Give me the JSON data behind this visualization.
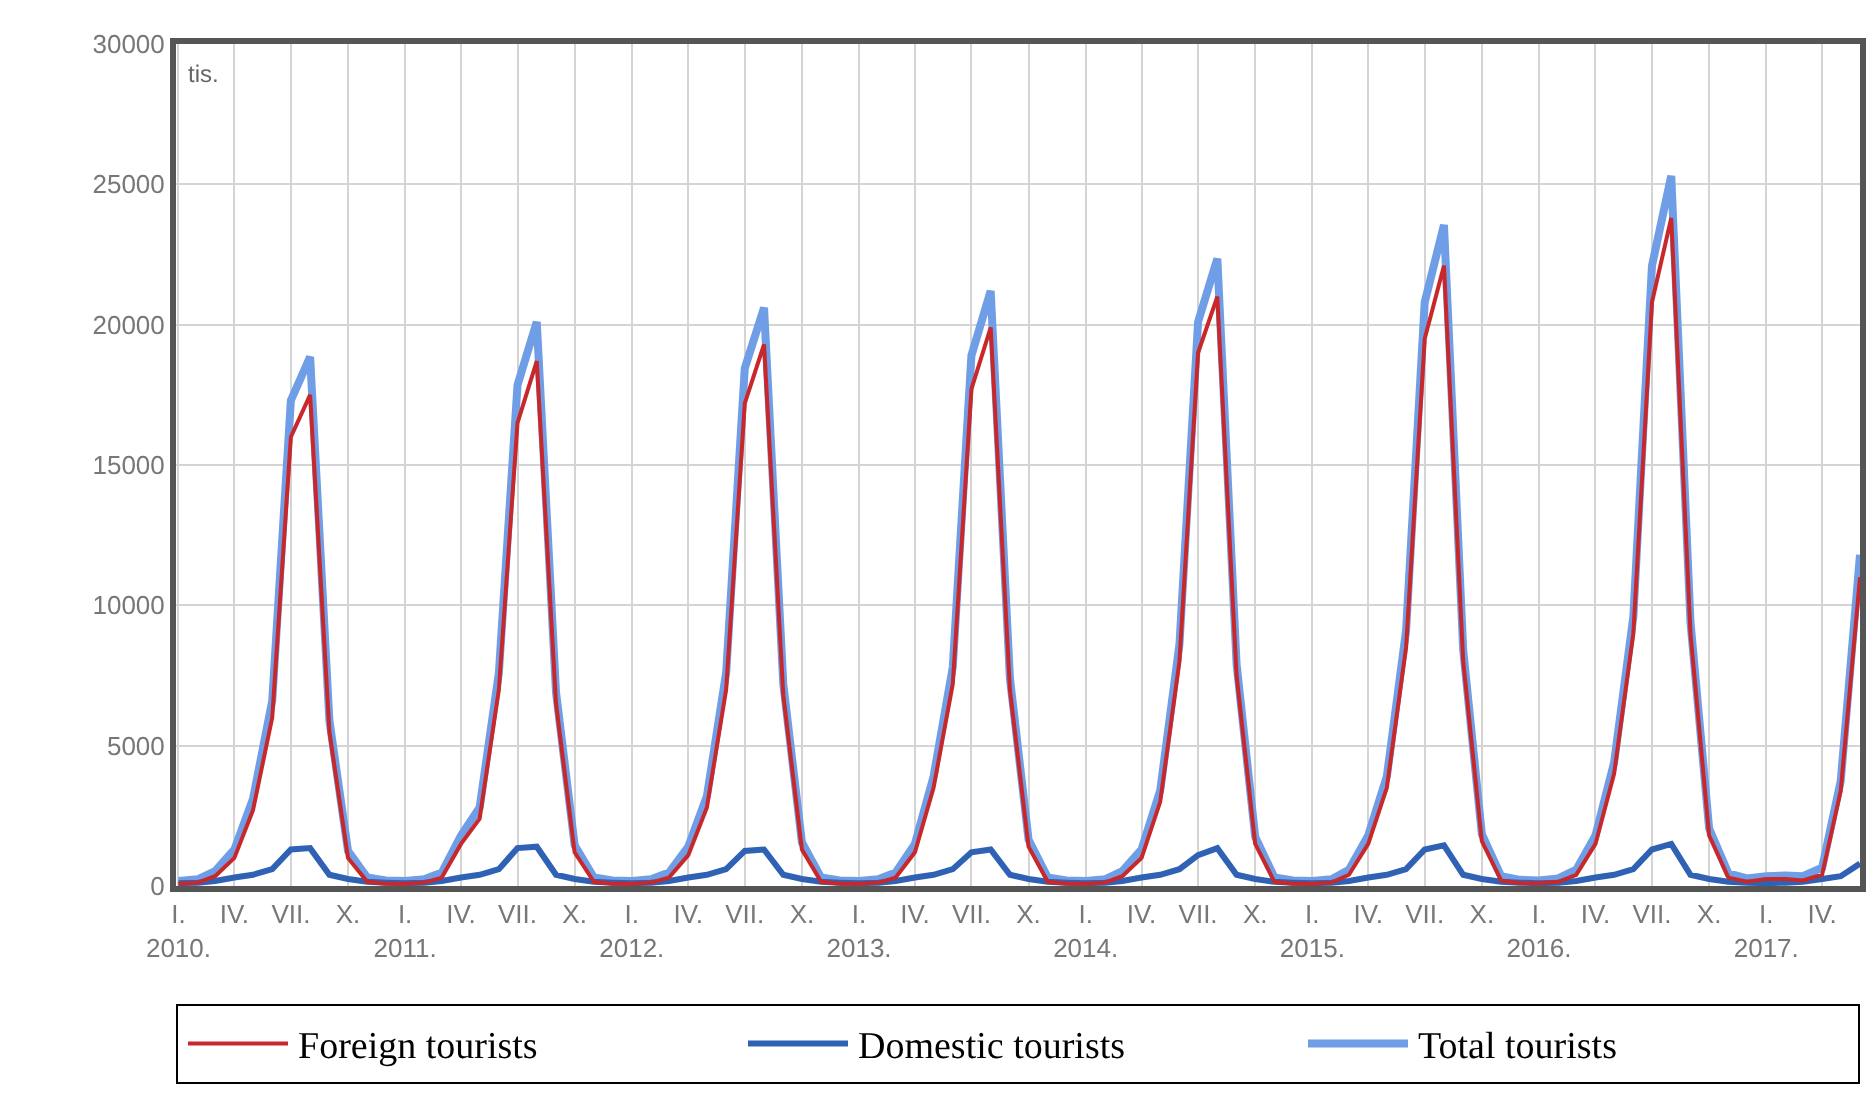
{
  "chart_data": {
    "type": "line",
    "ylim": [
      0,
      30000
    ],
    "yticks": [
      0,
      5000,
      10000,
      15000,
      20000,
      25000,
      30000
    ],
    "xlim": [
      "2009-12-28",
      "2017-06"
    ],
    "xticks": [
      {
        "value": "2010-01",
        "label": "I.\n2010."
      },
      {
        "value": "2010-04",
        "label": "IV."
      },
      {
        "value": "2010-07",
        "label": "VII."
      },
      {
        "value": "2010-10",
        "label": "X."
      },
      {
        "value": "2011-01",
        "label": "I.\n2011."
      },
      {
        "value": "2011-04",
        "label": "IV."
      },
      {
        "value": "2011-07",
        "label": "VII."
      },
      {
        "value": "2011-10",
        "label": "X."
      },
      {
        "value": "2012-01",
        "label": "I.\n2012."
      },
      {
        "value": "2012-04",
        "label": "IV."
      },
      {
        "value": "2012-07",
        "label": "VII."
      },
      {
        "value": "2012-10",
        "label": "X."
      },
      {
        "value": "2013-01",
        "label": "I.\n2013."
      },
      {
        "value": "2013-04",
        "label": "IV."
      },
      {
        "value": "2013-07",
        "label": "VII."
      },
      {
        "value": "2013-10",
        "label": "X."
      },
      {
        "value": "2014-01",
        "label": "I.\n2014."
      },
      {
        "value": "2014-04",
        "label": "IV."
      },
      {
        "value": "2014-07",
        "label": "VII."
      },
      {
        "value": "2014-10",
        "label": "X."
      },
      {
        "value": "2015-01",
        "label": "I.\n2015."
      },
      {
        "value": "2015-04",
        "label": "IV."
      },
      {
        "value": "2015-07",
        "label": "VII."
      },
      {
        "value": "2015-10",
        "label": "X."
      },
      {
        "value": "2016-01",
        "label": "I.\n2016."
      },
      {
        "value": "2016-04",
        "label": "IV."
      },
      {
        "value": "2016-07",
        "label": "VII."
      },
      {
        "value": "2016-10",
        "label": "X."
      },
      {
        "value": "2017-01",
        "label": "I.\n2017."
      },
      {
        "value": "2017-04",
        "label": "IV."
      }
    ],
    "x": [
      "2010-01",
      "2010-02",
      "2010-03",
      "2010-04",
      "2010-05",
      "2010-06",
      "2010-07",
      "2010-08",
      "2010-09",
      "2010-10",
      "2010-11",
      "2010-12",
      "2011-01",
      "2011-02",
      "2011-03",
      "2011-04",
      "2011-05",
      "2011-06",
      "2011-07",
      "2011-08",
      "2011-09",
      "2011-10",
      "2011-11",
      "2011-12",
      "2012-01",
      "2012-02",
      "2012-03",
      "2012-04",
      "2012-05",
      "2012-06",
      "2012-07",
      "2012-08",
      "2012-09",
      "2012-10",
      "2012-11",
      "2012-12",
      "2013-01",
      "2013-02",
      "2013-03",
      "2013-04",
      "2013-05",
      "2013-06",
      "2013-07",
      "2013-08",
      "2013-09",
      "2013-10",
      "2013-11",
      "2013-12",
      "2014-01",
      "2014-02",
      "2014-03",
      "2014-04",
      "2014-05",
      "2014-06",
      "2014-07",
      "2014-08",
      "2014-09",
      "2014-10",
      "2014-11",
      "2014-12",
      "2015-01",
      "2015-02",
      "2015-03",
      "2015-04",
      "2015-05",
      "2015-06",
      "2015-07",
      "2015-08",
      "2015-09",
      "2015-10",
      "2015-11",
      "2015-12",
      "2016-01",
      "2016-02",
      "2016-03",
      "2016-04",
      "2016-05",
      "2016-06",
      "2016-07",
      "2016-08",
      "2016-09",
      "2016-10",
      "2016-11",
      "2016-12",
      "2017-01",
      "2017-02",
      "2017-03",
      "2017-04",
      "2017-05",
      "2017-06"
    ],
    "series": [
      {
        "name": "Foreign tourists",
        "color": "#c8282a",
        "values": [
          80,
          120,
          350,
          1000,
          2700,
          6000,
          16000,
          17500,
          5500,
          1000,
          150,
          80,
          80,
          120,
          300,
          1500,
          2400,
          7000,
          16500,
          18700,
          6500,
          1200,
          150,
          80,
          80,
          120,
          300,
          1100,
          2800,
          7000,
          17200,
          19300,
          6800,
          1300,
          150,
          80,
          80,
          120,
          300,
          1200,
          3500,
          7200,
          17700,
          19900,
          7000,
          1400,
          150,
          80,
          80,
          120,
          350,
          1000,
          3000,
          8000,
          19000,
          21000,
          7500,
          1500,
          150,
          80,
          80,
          120,
          400,
          1500,
          3500,
          8500,
          19500,
          22100,
          8000,
          1600,
          200,
          100,
          100,
          150,
          400,
          1500,
          4000,
          9000,
          20800,
          23800,
          9000,
          1800,
          300,
          150,
          250,
          250,
          200,
          400,
          3400,
          11000
        ]
      },
      {
        "name": "Domestic tourists",
        "color": "#2f62b4",
        "values": [
          100,
          120,
          180,
          300,
          400,
          600,
          1300,
          1350,
          400,
          250,
          150,
          120,
          100,
          120,
          180,
          300,
          400,
          600,
          1350,
          1400,
          400,
          250,
          150,
          120,
          100,
          120,
          180,
          300,
          400,
          600,
          1250,
          1300,
          400,
          250,
          150,
          120,
          100,
          120,
          180,
          300,
          400,
          600,
          1200,
          1300,
          400,
          250,
          150,
          120,
          100,
          120,
          180,
          300,
          400,
          600,
          1100,
          1350,
          400,
          250,
          150,
          120,
          100,
          120,
          180,
          300,
          400,
          600,
          1300,
          1450,
          400,
          250,
          150,
          120,
          100,
          120,
          180,
          300,
          400,
          600,
          1300,
          1500,
          400,
          250,
          150,
          120,
          100,
          120,
          150,
          250,
          350,
          800
        ]
      },
      {
        "name": "Total tourists",
        "color": "#6f9ee6",
        "values": [
          180,
          240,
          530,
          1300,
          3100,
          6600,
          17300,
          18850,
          5900,
          1250,
          300,
          200,
          180,
          240,
          480,
          1800,
          2800,
          7600,
          17850,
          20100,
          6900,
          1450,
          300,
          200,
          180,
          240,
          480,
          1400,
          3200,
          7600,
          18450,
          20600,
          7200,
          1550,
          300,
          200,
          180,
          240,
          480,
          1500,
          3900,
          7800,
          18900,
          21200,
          7400,
          1650,
          300,
          200,
          180,
          240,
          530,
          1300,
          3400,
          8600,
          20100,
          22350,
          7900,
          1750,
          300,
          200,
          180,
          240,
          580,
          1800,
          3900,
          9100,
          20800,
          23550,
          8400,
          1850,
          350,
          220,
          200,
          270,
          580,
          1800,
          4400,
          9600,
          22100,
          25300,
          9400,
          2050,
          450,
          270,
          350,
          370,
          350,
          650,
          3750,
          11800
        ]
      }
    ],
    "annotations": [
      "tis."
    ],
    "grid": true,
    "legend": "bottom",
    "marker": "none",
    "line_style": "solid"
  }
}
